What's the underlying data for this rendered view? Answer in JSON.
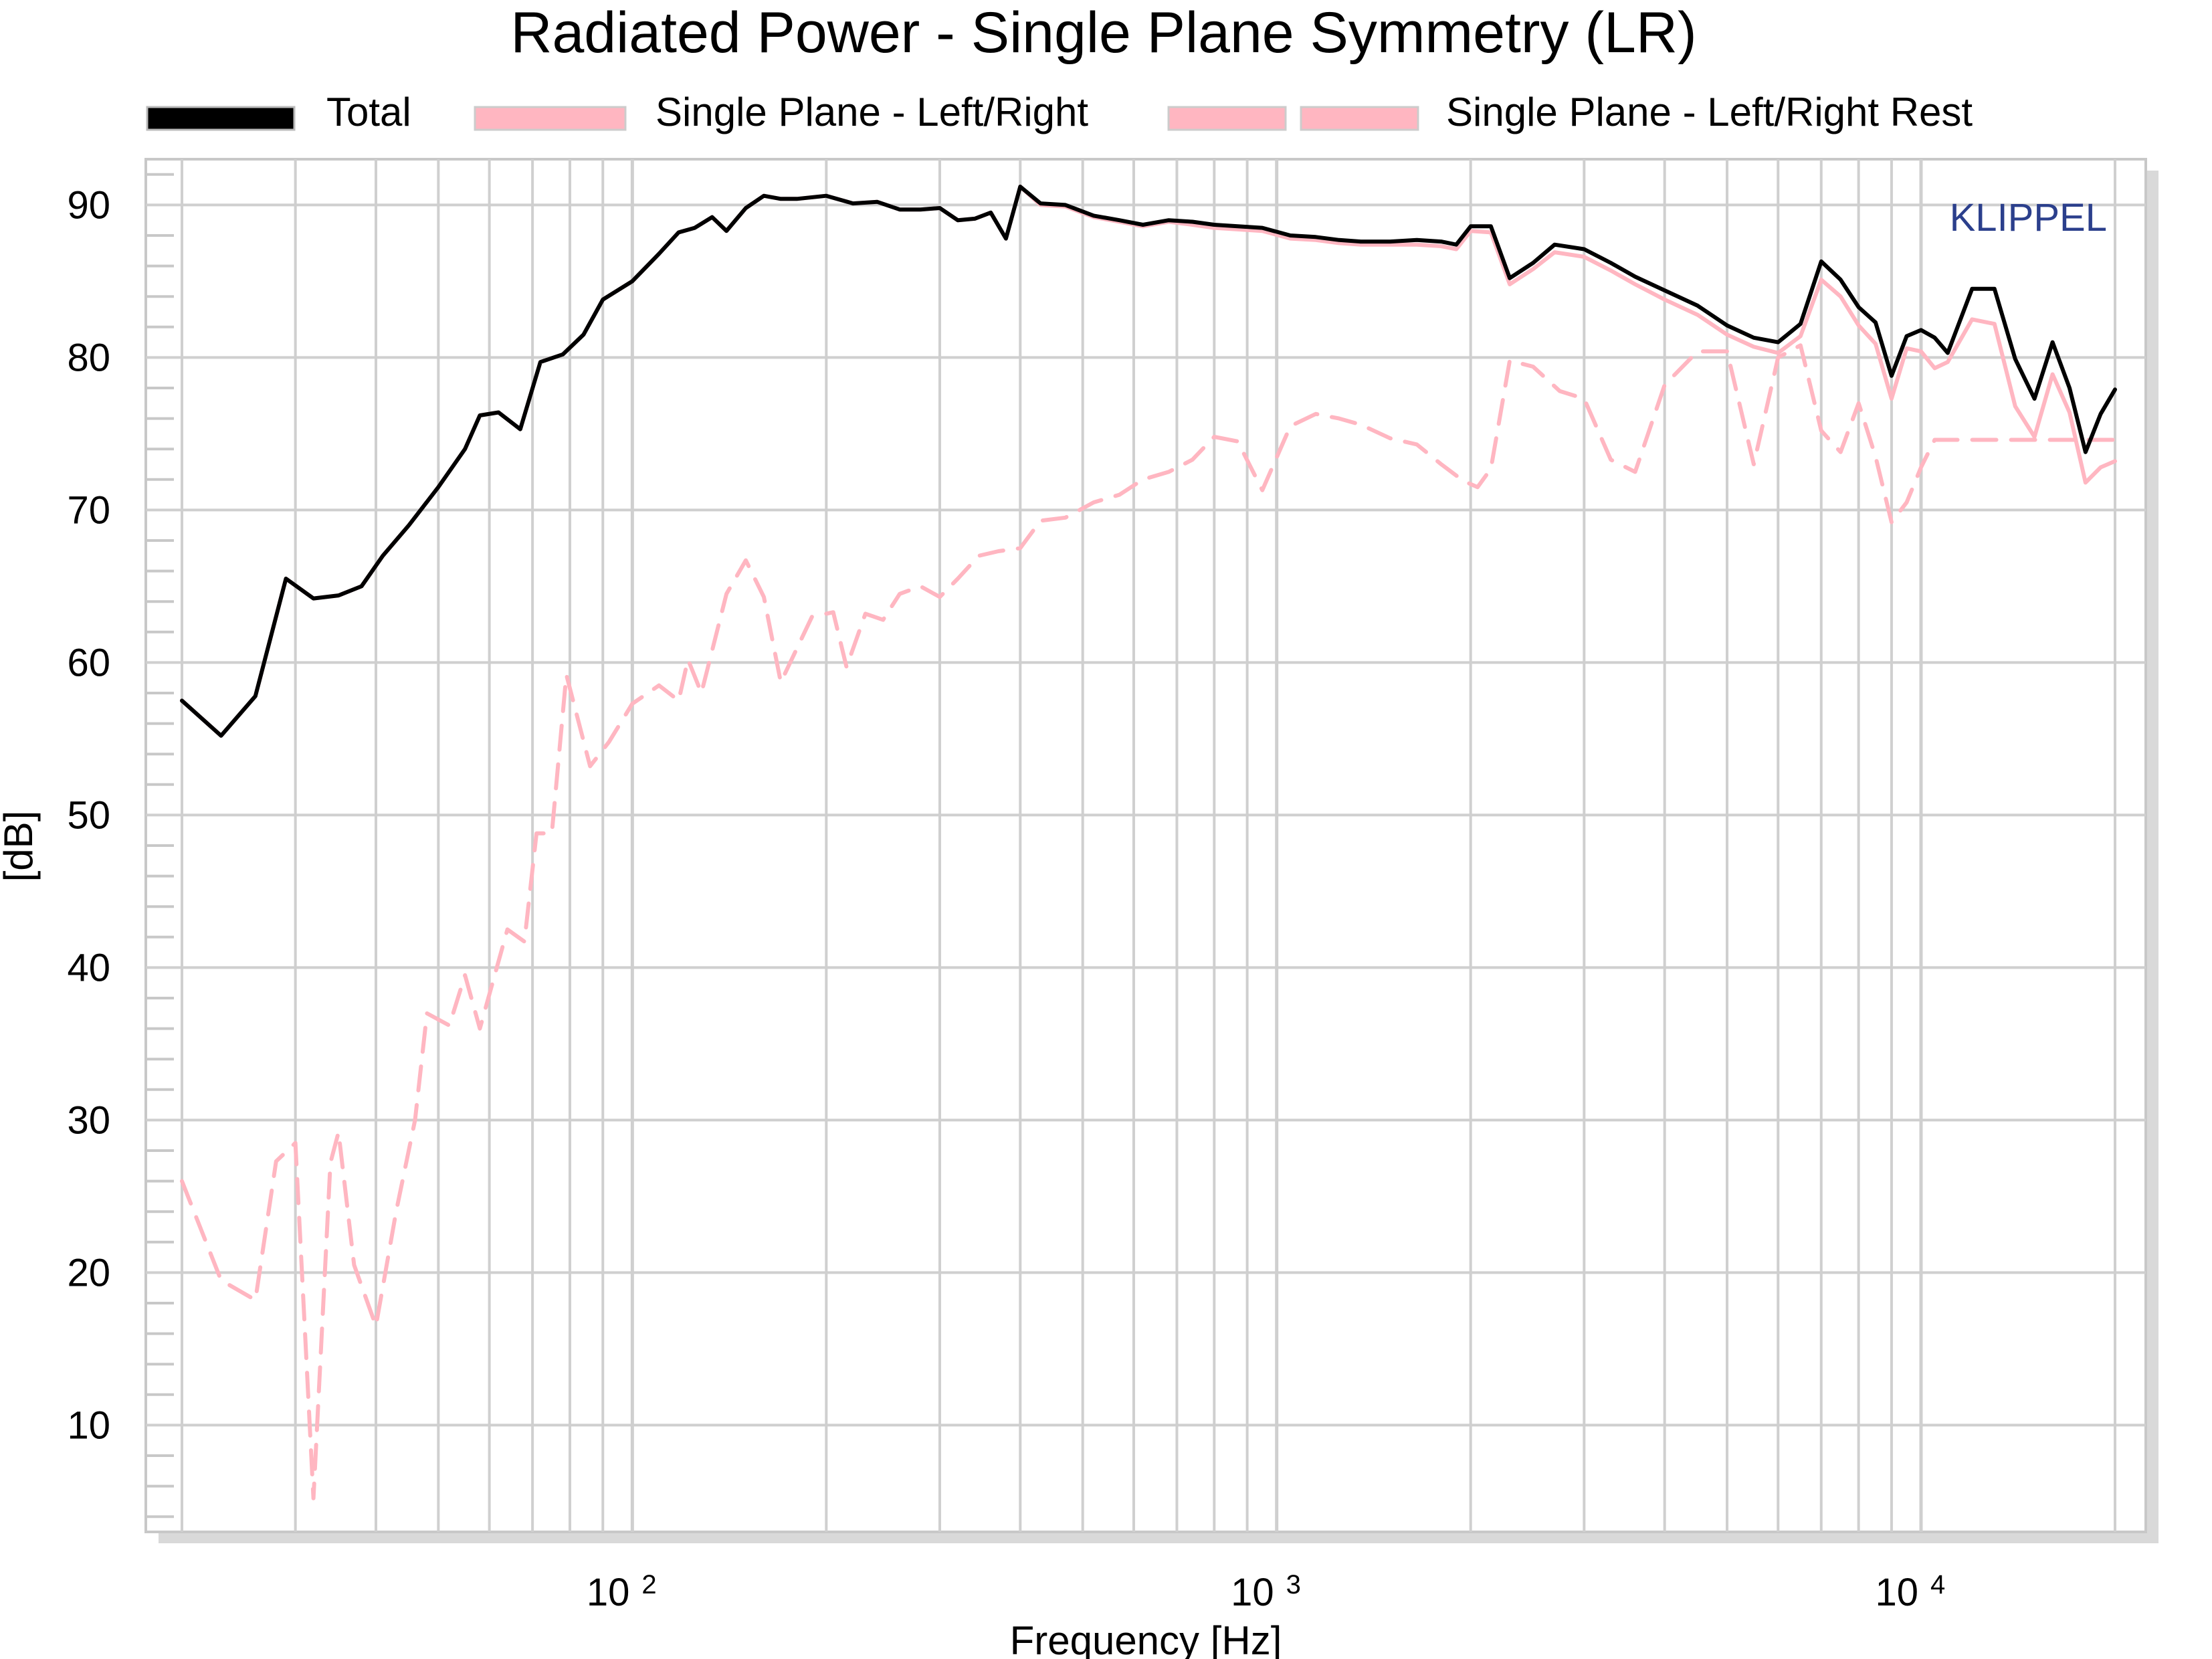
{
  "chart_data": {
    "type": "line",
    "title": "Radiated Power - Single Plane Symmetry (LR)",
    "xlabel": "Frequency [Hz]",
    "ylabel": "[dB]",
    "x_scale": "log",
    "xlim": [
      20,
      20000
    ],
    "ylim": [
      3,
      93
    ],
    "y_ticks": [
      "10",
      "20",
      "30",
      "40",
      "50",
      "60",
      "70",
      "80",
      "90"
    ],
    "x_ticks": [
      {
        "value": 100,
        "base": "10",
        "exp": "2"
      },
      {
        "value": 1000,
        "base": "10",
        "exp": "3"
      },
      {
        "value": 10000,
        "base": "10",
        "exp": "4"
      }
    ],
    "grid": true,
    "legend_position": "top",
    "watermark": "KLIPPEL",
    "series": [
      {
        "name": "Total",
        "color": "#000000",
        "dash": "solid",
        "x": [
          20,
          23,
          26,
          29,
          32,
          35,
          38,
          41,
          45,
          50,
          55,
          58,
          62,
          67,
          72,
          78,
          84,
          90,
          100,
          110,
          118,
          125,
          133,
          140,
          150,
          160,
          170,
          180,
          200,
          220,
          240,
          260,
          280,
          300,
          320,
          340,
          360,
          380,
          400,
          430,
          470,
          520,
          570,
          620,
          680,
          740,
          800,
          870,
          950,
          1050,
          1150,
          1250,
          1350,
          1500,
          1650,
          1800,
          1900,
          2000,
          2150,
          2300,
          2500,
          2700,
          3000,
          3300,
          3600,
          4000,
          4500,
          5000,
          5500,
          6000,
          6500,
          7000,
          7500,
          8000,
          8500,
          9000,
          9500,
          10000,
          10500,
          11000,
          12000,
          13000,
          14000,
          15000,
          16000,
          17000,
          18000,
          19000,
          20000
        ],
        "y": [
          57.5,
          55.2,
          57.8,
          65.5,
          64.2,
          64.4,
          65,
          67,
          69,
          71.5,
          74,
          76.2,
          76.4,
          75.3,
          79.7,
          80.2,
          81.5,
          83.8,
          85,
          86.8,
          88.2,
          88.5,
          89.2,
          88.3,
          89.8,
          90.6,
          90.4,
          90.4,
          90.6,
          90.1,
          90.2,
          89.7,
          89.7,
          89.8,
          89,
          89.1,
          89.5,
          87.8,
          91.2,
          90.1,
          90,
          89.3,
          89,
          88.7,
          89,
          88.9,
          88.7,
          88.6,
          88.5,
          88,
          87.9,
          87.7,
          87.6,
          87.6,
          87.7,
          87.6,
          87.4,
          88.6,
          88.6,
          85.2,
          86.2,
          87.4,
          87.1,
          86.2,
          85.3,
          84.4,
          83.4,
          82.1,
          81.3,
          81,
          82.2,
          86.3,
          85.1,
          83.3,
          82.3,
          78.8,
          81.4,
          81.8,
          81.3,
          80.3,
          84.5,
          84.5,
          79.9,
          77.3,
          81,
          78,
          73.8,
          76.3,
          77.9
        ]
      },
      {
        "name": "Single Plane - Left/Right",
        "color": "#ffb6c1",
        "dash": "solid",
        "x": [
          20,
          23,
          26,
          29,
          32,
          35,
          38,
          41,
          45,
          50,
          55,
          58,
          62,
          67,
          72,
          78,
          84,
          90,
          100,
          110,
          118,
          125,
          133,
          140,
          150,
          160,
          170,
          180,
          200,
          220,
          240,
          260,
          280,
          300,
          320,
          340,
          360,
          380,
          400,
          430,
          470,
          520,
          570,
          620,
          680,
          740,
          800,
          870,
          950,
          1050,
          1150,
          1250,
          1350,
          1500,
          1650,
          1800,
          1900,
          2000,
          2150,
          2300,
          2500,
          2700,
          3000,
          3300,
          3600,
          4000,
          4500,
          5000,
          5500,
          6000,
          6500,
          7000,
          7500,
          8000,
          8500,
          9000,
          9500,
          10000,
          10500,
          11000,
          12000,
          13000,
          14000,
          15000,
          16000,
          17000,
          18000,
          19000,
          20000
        ],
        "y": [
          57.5,
          55.2,
          57.8,
          65.5,
          64.2,
          64.4,
          65,
          67,
          69,
          71.5,
          74,
          76.2,
          76.4,
          75.3,
          79.7,
          80.2,
          81.5,
          83.8,
          85,
          86.8,
          88.2,
          88.5,
          89.2,
          88.3,
          89.8,
          90.6,
          90.4,
          90.4,
          90.6,
          90.1,
          90.2,
          89.7,
          89.7,
          89.8,
          89,
          89.1,
          89.5,
          87.8,
          91.2,
          90,
          89.9,
          89.2,
          88.9,
          88.6,
          88.9,
          88.7,
          88.5,
          88.4,
          88.3,
          87.8,
          87.7,
          87.5,
          87.4,
          87.4,
          87.4,
          87.3,
          87.1,
          88.3,
          88.2,
          84.8,
          85.8,
          86.9,
          86.6,
          85.7,
          84.8,
          83.8,
          82.8,
          81.5,
          80.7,
          80.3,
          81.4,
          85.1,
          84,
          82.1,
          80.9,
          77.3,
          80.6,
          80.4,
          79.3,
          79.7,
          82.5,
          82.2,
          76.8,
          74.8,
          78.9,
          76.4,
          71.8,
          72.8,
          73.2
        ]
      },
      {
        "name": "Single Plane - Left/Right Rest",
        "color": "#ffb6c1",
        "dash": "dashed",
        "x": [
          20,
          23,
          26,
          28,
          30,
          32,
          34,
          35,
          37,
          40,
          43,
          46,
          48,
          52,
          55,
          58,
          64,
          68,
          71,
          75,
          79,
          86,
          92,
          100,
          110,
          118,
          122,
          128,
          140,
          150,
          160,
          170,
          190,
          205,
          215,
          230,
          245,
          260,
          280,
          300,
          320,
          345,
          370,
          400,
          430,
          470,
          520,
          570,
          620,
          680,
          740,
          800,
          870,
          950,
          1050,
          1150,
          1250,
          1350,
          1500,
          1650,
          1800,
          1950,
          2050,
          2150,
          2300,
          2500,
          2750,
          3000,
          3300,
          3600,
          4000,
          4500,
          5000,
          5500,
          6000,
          6500,
          7000,
          7500,
          8000,
          8500,
          9000,
          9500,
          10000,
          10500,
          11000,
          12000,
          13000,
          14000,
          15000,
          16000,
          17000,
          18000,
          19000,
          20000
        ],
        "y": [
          26,
          19.5,
          18.2,
          27.3,
          28.5,
          5.2,
          27.2,
          29.2,
          20.5,
          16.5,
          24,
          30,
          37,
          36.2,
          39.5,
          36,
          42.5,
          41.7,
          48.8,
          48.8,
          59.2,
          53.2,
          54.8,
          57.3,
          58.5,
          57.5,
          60.2,
          58,
          64.5,
          66.7,
          64.3,
          58.7,
          63,
          63.3,
          59.7,
          63.2,
          62.8,
          64.5,
          65,
          64.3,
          65.5,
          67,
          67.3,
          67.5,
          69.3,
          69.5,
          70.5,
          71,
          72,
          72.5,
          73.3,
          74.8,
          74.5,
          71.3,
          75.5,
          76.3,
          76,
          75.6,
          74.7,
          74.3,
          73,
          71.9,
          71.5,
          72.7,
          79.8,
          79.4,
          77.8,
          77.3,
          73.3,
          72.5,
          78.2,
          80.4,
          80.4,
          73,
          80,
          80.8,
          75.2,
          73.8,
          77,
          73.5,
          69.2,
          70.5,
          72.8,
          74.6,
          74.6,
          74.6,
          74.6,
          74.6,
          74.6,
          74.6,
          74.6,
          74.6,
          74.6,
          74.6
        ]
      }
    ]
  }
}
